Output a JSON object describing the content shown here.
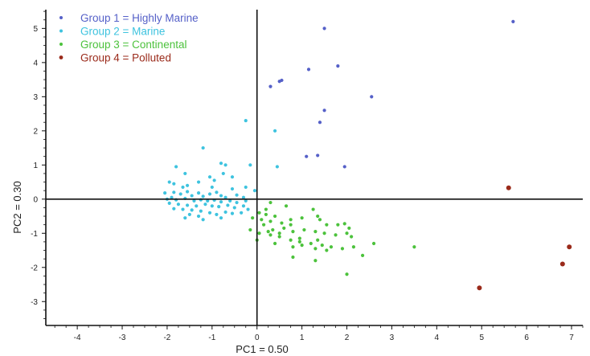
{
  "chart_data": {
    "type": "scatter",
    "xlabel": "PC1 = 0.50",
    "ylabel": "PC2 = 0.30",
    "xlim": [
      -4.7,
      7.25
    ],
    "ylim": [
      -3.7,
      5.55
    ],
    "xticks": [
      -4,
      -3,
      -2,
      -1,
      0,
      1,
      2,
      3,
      4,
      5,
      6,
      7
    ],
    "yticks": [
      -3,
      -2,
      -1,
      0,
      1,
      2,
      3,
      4,
      5
    ],
    "grid": false,
    "zero_lines": true,
    "legend": "top-left",
    "series": [
      {
        "name": "Group 1 = Highly Marine",
        "color": "#5560c8",
        "points": [
          [
            1.5,
            5.0
          ],
          [
            5.7,
            5.2
          ],
          [
            1.15,
            3.8
          ],
          [
            1.8,
            3.9
          ],
          [
            0.5,
            3.45
          ],
          [
            0.55,
            3.48
          ],
          [
            0.3,
            3.3
          ],
          [
            2.55,
            3.0
          ],
          [
            1.5,
            2.6
          ],
          [
            1.4,
            2.25
          ],
          [
            1.1,
            1.25
          ],
          [
            1.35,
            1.28
          ],
          [
            1.95,
            0.95
          ]
        ]
      },
      {
        "name": "Group 2 = Marine",
        "color": "#3ec3df",
        "points": [
          [
            -1.2,
            1.5
          ],
          [
            -0.25,
            2.3
          ],
          [
            0.4,
            2.0
          ],
          [
            -1.8,
            0.95
          ],
          [
            -1.6,
            0.75
          ],
          [
            -1.05,
            0.65
          ],
          [
            -0.8,
            1.05
          ],
          [
            -0.7,
            1.0
          ],
          [
            -0.15,
            1.0
          ],
          [
            0.45,
            0.95
          ],
          [
            -0.75,
            0.75
          ],
          [
            -0.55,
            0.65
          ],
          [
            -0.95,
            0.55
          ],
          [
            -1.3,
            0.5
          ],
          [
            -1.95,
            0.5
          ],
          [
            -1.85,
            0.45
          ],
          [
            -1.55,
            0.4
          ],
          [
            -1.65,
            0.35
          ],
          [
            -1.0,
            0.35
          ],
          [
            -0.55,
            0.3
          ],
          [
            -0.25,
            0.35
          ],
          [
            -0.05,
            0.25
          ],
          [
            -2.05,
            0.18
          ],
          [
            -1.85,
            0.2
          ],
          [
            -1.7,
            0.15
          ],
          [
            -1.55,
            0.22
          ],
          [
            -1.45,
            0.1
          ],
          [
            -1.3,
            0.18
          ],
          [
            -1.2,
            0.08
          ],
          [
            -1.05,
            0.15
          ],
          [
            -0.9,
            0.2
          ],
          [
            -0.8,
            0.1
          ],
          [
            -0.7,
            0.05
          ],
          [
            -0.45,
            0.12
          ],
          [
            -0.3,
            0.05
          ],
          [
            -1.9,
            0.05
          ],
          [
            -2.0,
            0.0
          ],
          [
            -1.8,
            -0.02
          ],
          [
            -1.6,
            0.02
          ],
          [
            -1.4,
            -0.05
          ],
          [
            -1.25,
            -0.02
          ],
          [
            -1.1,
            -0.05
          ],
          [
            -0.95,
            -0.03
          ],
          [
            -0.8,
            -0.08
          ],
          [
            -0.6,
            -0.05
          ],
          [
            -0.45,
            -0.1
          ],
          [
            -0.25,
            -0.05
          ],
          [
            -1.95,
            -0.12
          ],
          [
            -1.75,
            -0.15
          ],
          [
            -1.55,
            -0.18
          ],
          [
            -1.35,
            -0.2
          ],
          [
            -1.15,
            -0.15
          ],
          [
            -1.0,
            -0.2
          ],
          [
            -0.85,
            -0.22
          ],
          [
            -0.65,
            -0.18
          ],
          [
            -0.5,
            -0.25
          ],
          [
            -0.3,
            -0.2
          ],
          [
            -1.85,
            -0.28
          ],
          [
            -1.65,
            -0.3
          ],
          [
            -1.45,
            -0.32
          ],
          [
            -1.25,
            -0.35
          ],
          [
            -1.05,
            -0.4
          ],
          [
            -0.9,
            -0.45
          ],
          [
            -0.7,
            -0.38
          ],
          [
            -0.55,
            -0.42
          ],
          [
            -0.35,
            -0.4
          ],
          [
            -0.2,
            -0.3
          ],
          [
            -1.5,
            -0.45
          ],
          [
            -1.3,
            -0.5
          ],
          [
            -0.8,
            -0.55
          ],
          [
            -1.6,
            -0.55
          ],
          [
            -1.2,
            -0.6
          ]
        ]
      },
      {
        "name": "Group 3 = Continental",
        "color": "#4cc23c",
        "points": [
          [
            0.3,
            -0.1
          ],
          [
            0.65,
            -0.2
          ],
          [
            0.05,
            -0.4
          ],
          [
            0.2,
            -0.45
          ],
          [
            0.4,
            -0.5
          ],
          [
            -0.1,
            -0.55
          ],
          [
            0.1,
            -0.6
          ],
          [
            0.3,
            -0.65
          ],
          [
            0.55,
            -0.7
          ],
          [
            0.75,
            -0.6
          ],
          [
            1.0,
            -0.55
          ],
          [
            1.35,
            -0.5
          ],
          [
            1.25,
            -0.3
          ],
          [
            1.4,
            -0.6
          ],
          [
            1.55,
            -0.75
          ],
          [
            1.8,
            -0.75
          ],
          [
            1.95,
            -0.72
          ],
          [
            2.05,
            -0.85
          ],
          [
            0.15,
            -0.75
          ],
          [
            0.35,
            -0.9
          ],
          [
            0.6,
            -0.85
          ],
          [
            0.8,
            -0.95
          ],
          [
            1.05,
            -0.9
          ],
          [
            1.3,
            -0.95
          ],
          [
            1.5,
            -1.0
          ],
          [
            1.75,
            -1.05
          ],
          [
            2.0,
            -1.0
          ],
          [
            2.1,
            -1.1
          ],
          [
            -0.15,
            -0.9
          ],
          [
            0.05,
            -1.0
          ],
          [
            0.3,
            -1.05
          ],
          [
            0.5,
            -1.1
          ],
          [
            0.75,
            -1.2
          ],
          [
            0.95,
            -1.15
          ],
          [
            1.2,
            -1.3
          ],
          [
            1.45,
            -1.35
          ],
          [
            1.65,
            -1.4
          ],
          [
            1.9,
            -1.45
          ],
          [
            2.15,
            -1.4
          ],
          [
            2.6,
            -1.3
          ],
          [
            3.5,
            -1.4
          ],
          [
            0.0,
            -1.2
          ],
          [
            0.4,
            -1.3
          ],
          [
            0.8,
            -1.4
          ],
          [
            1.0,
            -1.35
          ],
          [
            1.3,
            -1.45
          ],
          [
            1.55,
            -1.5
          ],
          [
            2.35,
            -1.65
          ],
          [
            0.8,
            -1.7
          ],
          [
            1.3,
            -1.8
          ],
          [
            0.75,
            -0.75
          ],
          [
            0.2,
            -0.3
          ],
          [
            2.0,
            -2.2
          ],
          [
            0.95,
            -1.25
          ],
          [
            0.5,
            -1.0
          ],
          [
            0.25,
            -0.95
          ],
          [
            1.35,
            -1.2
          ]
        ]
      },
      {
        "name": "Group 4 = Polluted",
        "color": "#9a2a1a",
        "points": [
          [
            5.6,
            0.33
          ],
          [
            6.95,
            -1.4
          ],
          [
            6.8,
            -1.9
          ],
          [
            4.95,
            -2.6
          ]
        ]
      }
    ]
  }
}
